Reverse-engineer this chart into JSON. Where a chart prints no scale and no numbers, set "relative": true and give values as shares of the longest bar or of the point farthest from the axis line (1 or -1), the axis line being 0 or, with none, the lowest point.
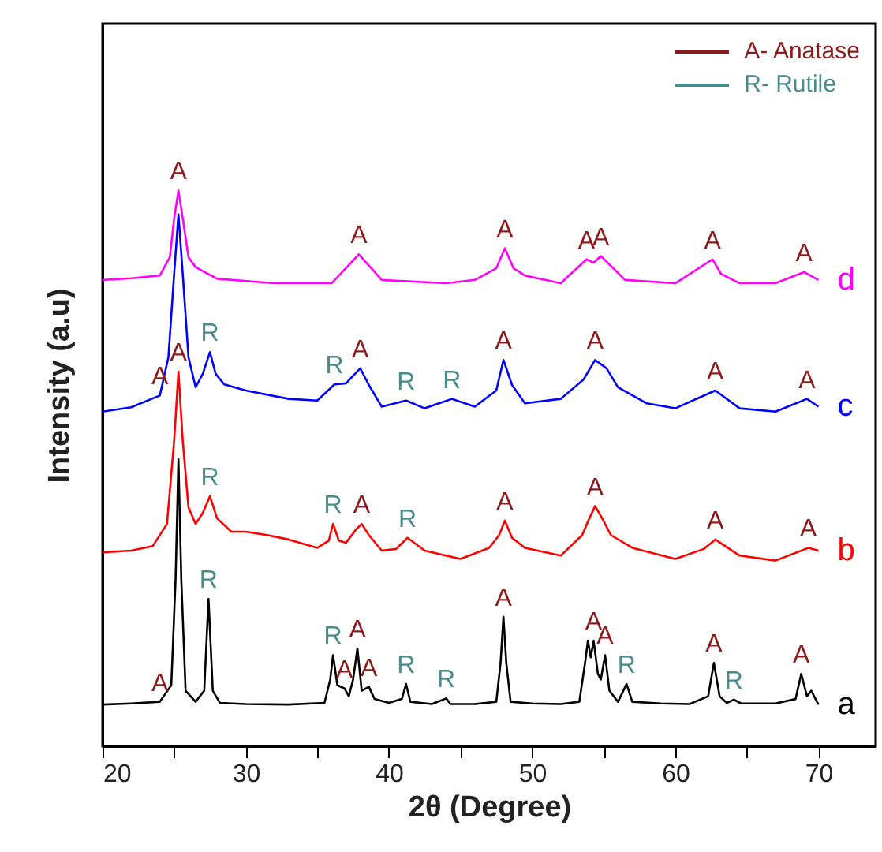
{
  "chart_data": {
    "type": "line",
    "relative": true,
    "xlabel": "2θ (Degree)",
    "ylabel": "Intensity (a.u)",
    "xlim": [
      20,
      74
    ],
    "xticks": [
      20,
      {
        "value": 25,
        "label": null
      },
      30,
      {
        "value": 35,
        "label": null
      },
      40,
      {
        "value": 45,
        "label": null
      },
      50,
      {
        "value": 55,
        "label": null
      },
      60,
      {
        "value": 65,
        "label": null
      },
      70
    ],
    "series": [
      {
        "name": "a",
        "color": "#000000",
        "x": [
          20,
          22,
          24,
          24.8,
          25.1,
          25.3,
          25.5,
          25.8,
          26.5,
          27.1,
          27.4,
          27.7,
          28.2,
          30,
          33,
          35.5,
          35.9,
          36.1,
          36.4,
          36.9,
          37.2,
          37.5,
          37.8,
          38.1,
          38.6,
          39,
          40,
          40.9,
          41.2,
          41.5,
          43,
          44,
          44.3,
          46,
          47.5,
          47.8,
          48,
          48.2,
          48.5,
          50,
          52,
          53.3,
          53.7,
          53.9,
          54.1,
          54.3,
          54.6,
          54.8,
          55.1,
          55.4,
          56,
          56.6,
          57,
          59,
          61,
          62.3,
          62.7,
          63.1,
          63.6,
          64.1,
          64.6,
          67,
          68.4,
          68.8,
          69.2,
          69.5,
          70
        ],
        "values": [
          0.075,
          0.077,
          0.08,
          0.11,
          0.3,
          0.516,
          0.3,
          0.1,
          0.08,
          0.1,
          0.265,
          0.1,
          0.078,
          0.076,
          0.075,
          0.078,
          0.12,
          0.164,
          0.11,
          0.104,
          0.09,
          0.12,
          0.176,
          0.1,
          0.107,
          0.085,
          0.078,
          0.085,
          0.112,
          0.08,
          0.076,
          0.086,
          0.076,
          0.076,
          0.08,
          0.15,
          0.233,
          0.15,
          0.08,
          0.077,
          0.076,
          0.08,
          0.15,
          0.19,
          0.16,
          0.19,
          0.13,
          0.12,
          0.164,
          0.1,
          0.08,
          0.112,
          0.08,
          0.077,
          0.076,
          0.09,
          0.15,
          0.09,
          0.078,
          0.084,
          0.077,
          0.077,
          0.085,
          0.13,
          0.09,
          0.1,
          0.075
        ]
      },
      {
        "name": "b",
        "color": "#ff0000",
        "x": [
          20,
          22,
          23.5,
          24.5,
          25,
          25.3,
          25.6,
          26,
          26.5,
          27,
          27.5,
          28,
          29,
          30,
          31.5,
          33,
          35,
          35.8,
          36.1,
          36.5,
          37,
          37.7,
          38.1,
          38.6,
          39.5,
          40.5,
          41.3,
          42.5,
          45,
          47,
          47.7,
          48.1,
          48.6,
          49.5,
          52,
          53.5,
          54,
          54.4,
          54.9,
          55.5,
          57,
          60,
          62,
          62.8,
          63.5,
          64.5,
          67,
          69.3,
          70
        ],
        "values": [
          0.349,
          0.352,
          0.36,
          0.4,
          0.55,
          0.674,
          0.55,
          0.43,
          0.4,
          0.42,
          0.45,
          0.41,
          0.386,
          0.386,
          0.38,
          0.372,
          0.357,
          0.37,
          0.4,
          0.37,
          0.366,
          0.39,
          0.4,
          0.38,
          0.352,
          0.355,
          0.375,
          0.352,
          0.337,
          0.357,
          0.38,
          0.406,
          0.375,
          0.357,
          0.343,
          0.38,
          0.41,
          0.432,
          0.41,
          0.38,
          0.357,
          0.337,
          0.355,
          0.372,
          0.36,
          0.343,
          0.334,
          0.357,
          0.352
        ]
      },
      {
        "name": "c",
        "color": "#0000ff",
        "x": [
          20,
          22,
          24,
          24.6,
          25,
          25.3,
          25.6,
          26,
          26.5,
          27,
          27.5,
          27.9,
          28.5,
          30,
          33,
          35,
          36.2,
          37,
          38,
          38.6,
          39.5,
          41.2,
          42.5,
          44.4,
          46,
          47.5,
          48,
          48.6,
          49.5,
          52,
          53.6,
          54.4,
          55.2,
          56,
          58,
          60,
          62.8,
          64.5,
          67,
          69.2,
          70
        ],
        "values": [
          0.602,
          0.61,
          0.631,
          0.7,
          0.85,
          0.957,
          0.85,
          0.7,
          0.646,
          0.67,
          0.709,
          0.67,
          0.651,
          0.64,
          0.625,
          0.622,
          0.651,
          0.653,
          0.68,
          0.65,
          0.611,
          0.622,
          0.608,
          0.625,
          0.611,
          0.64,
          0.695,
          0.65,
          0.617,
          0.625,
          0.66,
          0.695,
          0.68,
          0.646,
          0.617,
          0.608,
          0.64,
          0.608,
          0.602,
          0.625,
          0.611
        ]
      },
      {
        "name": "d",
        "color": "#ff00ff",
        "x": [
          20,
          22,
          24,
          24.7,
          25,
          25.3,
          25.6,
          26,
          26.5,
          28,
          32,
          36,
          37.9,
          39.5,
          44,
          46,
          47.5,
          48.1,
          48.7,
          49.5,
          52,
          53.8,
          54.3,
          54.8,
          56.5,
          60,
          62.6,
          63.2,
          64.5,
          67,
          69,
          70
        ],
        "values": [
          0.839,
          0.842,
          0.847,
          0.88,
          0.95,
          1,
          0.95,
          0.88,
          0.862,
          0.841,
          0.833,
          0.833,
          0.885,
          0.839,
          0.833,
          0.839,
          0.86,
          0.896,
          0.86,
          0.847,
          0.833,
          0.876,
          0.87,
          0.882,
          0.839,
          0.833,
          0.876,
          0.85,
          0.833,
          0.833,
          0.853,
          0.839
        ]
      },
      {
        "name": "A- Anatase",
        "color": "#8b1a1a"
      },
      {
        "name": "R- Rutile",
        "color": "#4a8c8c"
      }
    ],
    "legend": "top right",
    "annotations": [
      {
        "text": "A",
        "x": 25.3,
        "y": 1
      },
      {
        "text": "A",
        "x": 37.9,
        "y": 0.885
      },
      {
        "text": "A",
        "x": 48.1,
        "y": 0.896
      },
      {
        "text": "A",
        "x": 53.8,
        "y": 0.876
      },
      {
        "text": "A",
        "x": 54.8,
        "y": 0.882
      },
      {
        "text": "A",
        "x": 62.6,
        "y": 0.876
      },
      {
        "text": "A",
        "x": 69,
        "y": 0.853
      },
      {
        "text": "A",
        "x": 24,
        "y": 0.631
      },
      {
        "text": "R",
        "x": 27.5,
        "y": 0.709
      },
      {
        "text": "R",
        "x": 36.2,
        "y": 0.651
      },
      {
        "text": "A",
        "x": 38,
        "y": 0.68
      },
      {
        "text": "R",
        "x": 41.2,
        "y": 0.622
      },
      {
        "text": "R",
        "x": 44.4,
        "y": 0.625
      },
      {
        "text": "A",
        "x": 48,
        "y": 0.695
      },
      {
        "text": "A",
        "x": 54.4,
        "y": 0.695
      },
      {
        "text": "A",
        "x": 62.8,
        "y": 0.64
      },
      {
        "text": "A",
        "x": 69.2,
        "y": 0.625
      },
      {
        "text": "A",
        "x": 25.3,
        "y": 0.674
      },
      {
        "text": "R",
        "x": 27.5,
        "y": 0.45
      },
      {
        "text": "R",
        "x": 36.1,
        "y": 0.4
      },
      {
        "text": "A",
        "x": 38.1,
        "y": 0.4
      },
      {
        "text": "R",
        "x": 41.3,
        "y": 0.375
      },
      {
        "text": "A",
        "x": 48.1,
        "y": 0.406
      },
      {
        "text": "A",
        "x": 54.4,
        "y": 0.432
      },
      {
        "text": "A",
        "x": 62.8,
        "y": 0.372
      },
      {
        "text": "A",
        "x": 69.3,
        "y": 0.357
      },
      {
        "text": "A",
        "x": 24,
        "y": 0.08
      },
      {
        "text": "R",
        "x": 27.4,
        "y": 0.265
      },
      {
        "text": "R",
        "x": 36.1,
        "y": 0.164
      },
      {
        "text": "A",
        "x": 36.9,
        "y": 0.104
      },
      {
        "text": "A",
        "x": 37.8,
        "y": 0.176
      },
      {
        "text": "A",
        "x": 38.6,
        "y": 0.107
      },
      {
        "text": "R",
        "x": 41.2,
        "y": 0.112
      },
      {
        "text": "R",
        "x": 44,
        "y": 0.086
      },
      {
        "text": "A",
        "x": 48,
        "y": 0.233
      },
      {
        "text": "A",
        "x": 54.3,
        "y": 0.19
      },
      {
        "text": "A",
        "x": 55.1,
        "y": 0.164
      },
      {
        "text": "R",
        "x": 56.6,
        "y": 0.112
      },
      {
        "text": "A",
        "x": 62.7,
        "y": 0.15
      },
      {
        "text": "R",
        "x": 64.1,
        "y": 0.084
      },
      {
        "text": "A",
        "x": 68.8,
        "y": 0.13
      }
    ]
  }
}
